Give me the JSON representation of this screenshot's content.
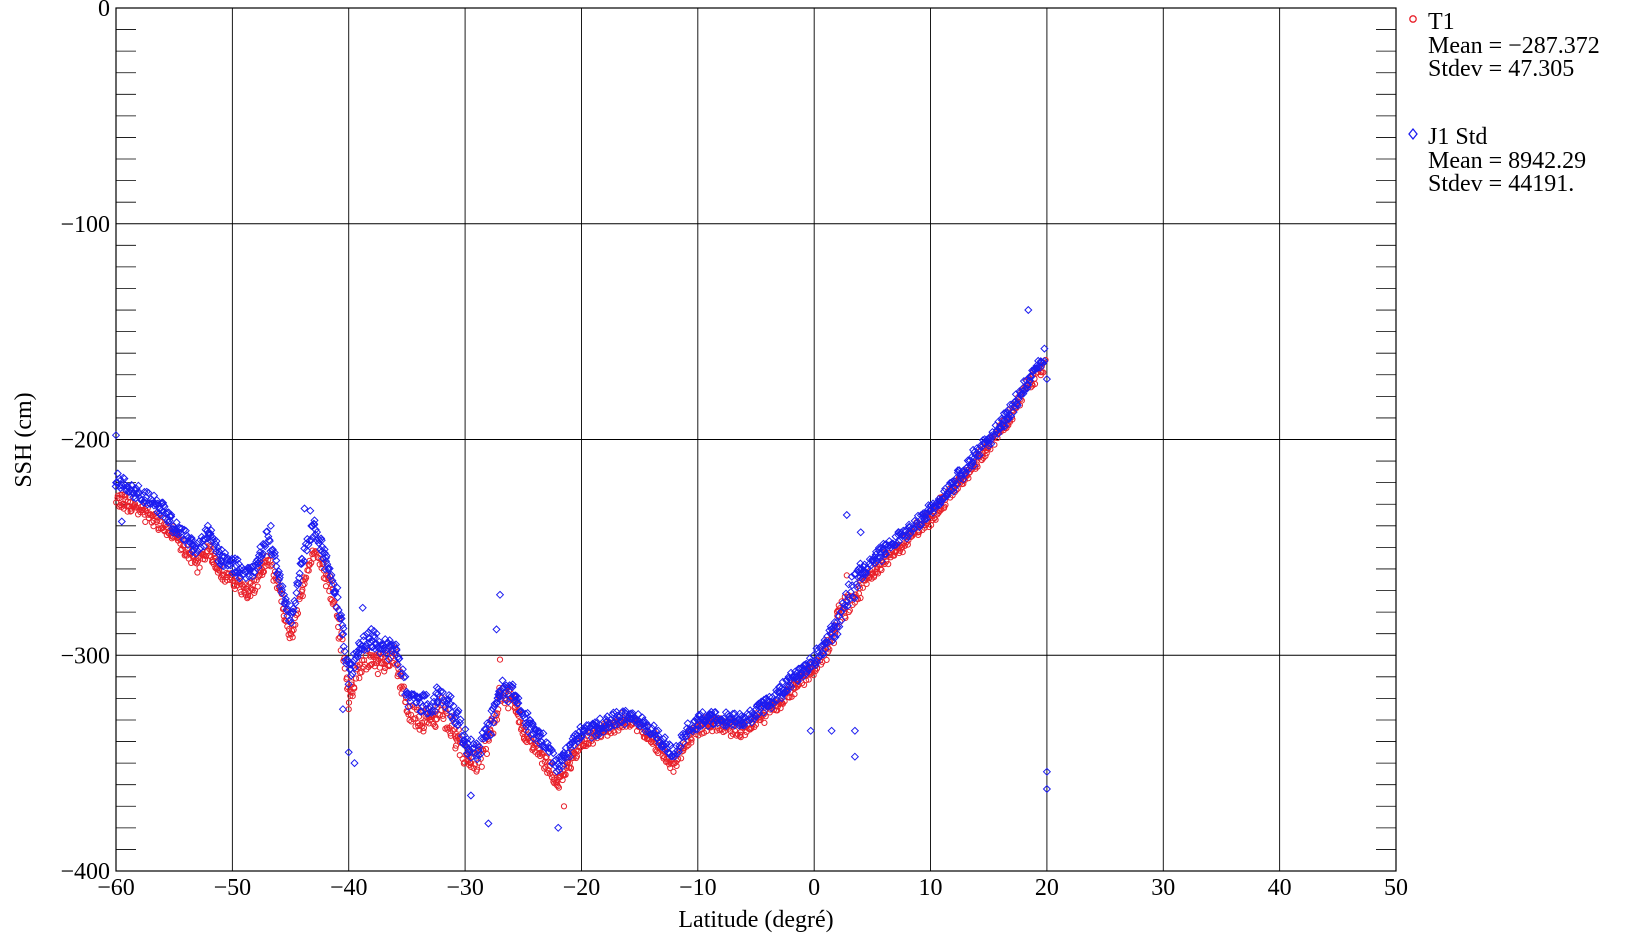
{
  "colors": {
    "t1": "#e8202a",
    "j1": "#1c1cf0",
    "grid": "#000000",
    "background": "#ffffff"
  },
  "chart_data": {
    "type": "scatter",
    "title": "",
    "xlabel": "Latitude (degré)",
    "ylabel": "SSH (cm)",
    "xlim": [
      -60,
      50
    ],
    "ylim": [
      -400,
      0
    ],
    "x_ticks": [
      -60,
      -50,
      -40,
      -30,
      -20,
      -10,
      0,
      10,
      20,
      30,
      40,
      50
    ],
    "x_tick_labels": [
      "−60",
      "−50",
      "−40",
      "−30",
      "−20",
      "−10",
      "0",
      "10",
      "20",
      "30",
      "40",
      "50"
    ],
    "y_ticks": [
      0,
      -100,
      -200,
      -300,
      -400
    ],
    "y_tick_labels": [
      "0",
      "−100",
      "−200",
      "−300",
      "−400"
    ],
    "grid": true,
    "legend_position": "right",
    "series": [
      {
        "name": "T1",
        "marker": "circle",
        "color": "#e8202a",
        "stats": [
          "Mean = −287.372",
          "Stdev = 47.305"
        ],
        "profile": [
          [
            -60,
            -228
          ],
          [
            -59,
            -230
          ],
          [
            -58,
            -232
          ],
          [
            -57,
            -236
          ],
          [
            -56,
            -240
          ],
          [
            -55,
            -245
          ],
          [
            -54,
            -252
          ],
          [
            -53,
            -258
          ],
          [
            -52,
            -250
          ],
          [
            -51,
            -262
          ],
          [
            -50,
            -265
          ],
          [
            -49,
            -270
          ],
          [
            -48,
            -268
          ],
          [
            -47,
            -255
          ],
          [
            -46,
            -270
          ],
          [
            -45,
            -293
          ],
          [
            -44,
            -270
          ],
          [
            -43,
            -250
          ],
          [
            -42,
            -262
          ],
          [
            -41,
            -280
          ],
          [
            -40,
            -318
          ],
          [
            -39,
            -305
          ],
          [
            -38,
            -300
          ],
          [
            -37,
            -305
          ],
          [
            -36,
            -300
          ],
          [
            -35,
            -325
          ],
          [
            -34,
            -330
          ],
          [
            -33,
            -330
          ],
          [
            -32,
            -325
          ],
          [
            -31,
            -335
          ],
          [
            -30,
            -348
          ],
          [
            -29,
            -350
          ],
          [
            -28,
            -340
          ],
          [
            -27,
            -320
          ],
          [
            -26,
            -318
          ],
          [
            -25,
            -335
          ],
          [
            -24,
            -342
          ],
          [
            -23,
            -350
          ],
          [
            -22,
            -360
          ],
          [
            -21,
            -350
          ],
          [
            -20,
            -340
          ],
          [
            -19,
            -338
          ],
          [
            -18,
            -335
          ],
          [
            -17,
            -332
          ],
          [
            -16,
            -330
          ],
          [
            -15,
            -333
          ],
          [
            -14,
            -338
          ],
          [
            -13,
            -345
          ],
          [
            -12,
            -352
          ],
          [
            -11,
            -340
          ],
          [
            -10,
            -334
          ],
          [
            -9,
            -332
          ],
          [
            -8,
            -332
          ],
          [
            -7,
            -334
          ],
          [
            -6,
            -335
          ],
          [
            -5,
            -330
          ],
          [
            -4,
            -326
          ],
          [
            -3,
            -322
          ],
          [
            -2,
            -316
          ],
          [
            -1,
            -312
          ],
          [
            0,
            -306
          ],
          [
            1,
            -298
          ],
          [
            2,
            -284
          ],
          [
            3,
            -277
          ],
          [
            4,
            -268
          ],
          [
            5,
            -262
          ],
          [
            6,
            -257
          ],
          [
            7,
            -252
          ],
          [
            8,
            -246
          ],
          [
            9,
            -241
          ],
          [
            10,
            -236
          ],
          [
            11,
            -230
          ],
          [
            12,
            -223
          ],
          [
            13,
            -217
          ],
          [
            14,
            -210
          ],
          [
            15,
            -203
          ],
          [
            16,
            -196
          ],
          [
            17,
            -188
          ],
          [
            18,
            -178
          ],
          [
            19,
            -170
          ],
          [
            19.9,
            -165
          ]
        ],
        "outliers": [
          [
            -27,
            -302
          ],
          [
            -21.5,
            -370
          ],
          [
            2.8,
            -263
          ],
          [
            -40,
            -325
          ]
        ]
      },
      {
        "name": "J1 Std",
        "marker": "diamond",
        "color": "#1c1cf0",
        "stats": [
          "Mean = 8942.29",
          "Stdev = 44191."
        ],
        "profile": [
          [
            -60,
            -218
          ],
          [
            -59,
            -222
          ],
          [
            -58,
            -226
          ],
          [
            -57,
            -228
          ],
          [
            -56,
            -233
          ],
          [
            -55,
            -240
          ],
          [
            -54,
            -245
          ],
          [
            -53,
            -250
          ],
          [
            -52,
            -242
          ],
          [
            -51,
            -255
          ],
          [
            -50,
            -258
          ],
          [
            -49,
            -262
          ],
          [
            -48,
            -260
          ],
          [
            -47,
            -245
          ],
          [
            -46,
            -262
          ],
          [
            -45,
            -285
          ],
          [
            -44,
            -255
          ],
          [
            -43,
            -240
          ],
          [
            -42,
            -255
          ],
          [
            -41,
            -272
          ],
          [
            -40,
            -310
          ],
          [
            -39,
            -295
          ],
          [
            -38,
            -292
          ],
          [
            -37,
            -297
          ],
          [
            -36,
            -296
          ],
          [
            -35,
            -318
          ],
          [
            -34,
            -322
          ],
          [
            -33,
            -323
          ],
          [
            -32,
            -318
          ],
          [
            -31,
            -325
          ],
          [
            -30,
            -340
          ],
          [
            -29,
            -345
          ],
          [
            -28,
            -335
          ],
          [
            -27,
            -318
          ],
          [
            -26,
            -315
          ],
          [
            -25,
            -328
          ],
          [
            -24,
            -336
          ],
          [
            -23,
            -342
          ],
          [
            -22,
            -352
          ],
          [
            -21,
            -343
          ],
          [
            -20,
            -335
          ],
          [
            -19,
            -334
          ],
          [
            -18,
            -332
          ],
          [
            -17,
            -330
          ],
          [
            -16,
            -328
          ],
          [
            -15,
            -330
          ],
          [
            -14,
            -334
          ],
          [
            -13,
            -340
          ],
          [
            -12,
            -345
          ],
          [
            -11,
            -336
          ],
          [
            -10,
            -330
          ],
          [
            -9,
            -329
          ],
          [
            -8,
            -329
          ],
          [
            -7,
            -330
          ],
          [
            -6,
            -331
          ],
          [
            -5,
            -327
          ],
          [
            -4,
            -322
          ],
          [
            -3,
            -318
          ],
          [
            -2,
            -312
          ],
          [
            -1,
            -308
          ],
          [
            0,
            -302
          ],
          [
            1,
            -296
          ],
          [
            2,
            -285
          ],
          [
            3,
            -272
          ],
          [
            4,
            -262
          ],
          [
            5,
            -256
          ],
          [
            6,
            -252
          ],
          [
            7,
            -247
          ],
          [
            8,
            -243
          ],
          [
            9,
            -238
          ],
          [
            10,
            -232
          ],
          [
            11,
            -226
          ],
          [
            12,
            -220
          ],
          [
            13,
            -213
          ],
          [
            14,
            -206
          ],
          [
            15,
            -200
          ],
          [
            16,
            -193
          ],
          [
            17,
            -186
          ],
          [
            18,
            -176
          ],
          [
            19,
            -168
          ],
          [
            19.9,
            -160
          ]
        ],
        "outliers": [
          [
            18.4,
            -140
          ],
          [
            20,
            -172
          ],
          [
            20,
            -354
          ],
          [
            20,
            -362
          ],
          [
            -22,
            -380
          ],
          [
            -27.3,
            -288
          ],
          [
            -27,
            -272
          ],
          [
            -28,
            -378
          ],
          [
            -29.5,
            -365
          ],
          [
            -40,
            -345
          ],
          [
            -39.5,
            -350
          ],
          [
            -40.5,
            -325
          ],
          [
            -38.8,
            -278
          ],
          [
            2.8,
            -235
          ],
          [
            3.5,
            -335
          ],
          [
            3.5,
            -347
          ],
          [
            1.5,
            -335
          ],
          [
            -0.3,
            -335
          ],
          [
            4,
            -243
          ],
          [
            -43.8,
            -232
          ],
          [
            -43.3,
            -233
          ],
          [
            -46.7,
            -240
          ],
          [
            -60,
            -198
          ],
          [
            -59.5,
            -238
          ]
        ]
      }
    ]
  }
}
